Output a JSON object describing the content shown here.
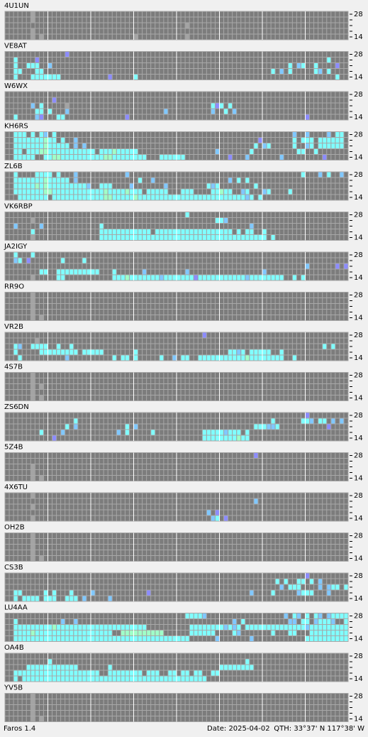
{
  "window": {
    "axis_top": "28",
    "axis_bottom": "14",
    "colors": {
      "g": "#a4a4a4",
      "c": "#80ffff",
      "b": "#80c8ff",
      "p": "#8c8cff",
      "m": "#a0ffc8"
    },
    "panels": [
      {
        "label": "4U1UN",
        "rows": [
          "......g...",
          "......g...",
          "..........................................g",
          "......g...",
          "......g.g.....................g...........g"
        ]
      },
      {
        "label": "VE8AT",
        "rows": [
          "..............p",
          "..c....p...................................................................c....",
          "..c..ccc..b.......................................................c.bc..c....p..",
          "..cc...cc.....................................................c.b.c.....cb.c...",
          "..c...ccccccc...........p.....c..............................................c"
        ]
      },
      {
        "label": "W6WX",
        "rows": [
          "",
          "...........p...................................................................",
          "......b.c.....g.................................cpc.c..........................",
          ".......cc.c...b......................b..........b..c.b........................",
          "..c....bp...cc..............p.........................................p......."
        ]
      },
      {
        "label": "KH6RS",
        "rows": [
          "..ccc.c.cb.c.......................................................b..b....b.cc",
          "..cccccccmcc.c..b..........................................p.......c.ccc.cccccc.",
          "..cccccccmccccc.b.b.......................................c.bc.....c..bc.cccccc..",
          "..cc.cccmmccccccccccc.cccmccccc..................b.......c..........cc..c........",
          "..ccccc..ccmmccccccccccmmcccccccc...cccccc..........p...b.......b.........p......"
        ]
      },
      {
        "label": "ZL6B",
        "rows": [
          "..c....cccc.c...b...........b........................................c...b.c..b.",
          "..cccccccmccccc.b..............c..b.................b.c.c..........................",
          "..cccccmcmcccccccccb..ccc....b.......b.........cbc........c...........................",
          "..cccccccmmccccccccccccmccccmccc.ccccc...ccc....ccmcc..bc...bc....c...............",
          "...ccccccc.ccccccccccccmmcccccmcccccccccccccccccccccccccbc.c..........................."
        ]
      },
      {
        "label": "VK6RBP",
        "rows": [
          "..........................................c...................................",
          "......g..........................................ccb..........................",
          "..b.....b.............c..................................b....................",
          "......c...............cccccccccccc.cccccccccccccccccc.c.cc..c.......................",
          "......g...............ccccccccccccccccccccccccccccccccccccccc.c........................"
        ]
      },
      {
        "label": "JA2IGY",
        "rows": [
          "..c...c........................................................................",
          "..bc.p.......c....c...............................................................",
          "......................................................................b......p.p.",
          "........cc..cccccccccc...c......b.........b.................b.....................",
          "......g.....cc...........cccmcccccccbcccccccpcccccccccccbcccccccc..c.c.........."
        ]
      },
      {
        "label": "RR9O",
        "rows": [
          "......g...",
          "......g...",
          "......g...",
          "......g...",
          "......g.g....."
        ]
      },
      {
        "label": "VR2B",
        "rows": [
          "..............................................p.................................",
          ".......g..........................................................................c.",
          "..cb..cccc..c..c..........................................................c.c.....",
          "..c.....ccccccccc.ccccc.......c.....................ccbc.ccccc..c..................",
          "...c..........b..........c.cc.c.....c..b.cc..cccccccccccmcccccccc..c.........."
        ]
      },
      {
        "label": "4S7B",
        "rows": [
          "......g...",
          "......g...",
          "......g.g.",
          "......g...",
          "......g.g....."
        ]
      },
      {
        "label": "ZS6DN",
        "rows": [
          "......................................................................p...........",
          "................c.............................................c......ccb.cc.b.b.",
          "..............c.b...........c.b...........................cccbbc...........p....",
          "........c....b............b.c.....c...........cccccbccc.c.........................",
          "...........p..................................ccccccccmcc..................."
        ]
      },
      {
        "label": "5Z4B",
        "rows": [
          "..........................................................p..................",
          "..................................................................................p....",
          "......g...",
          "......g...",
          "......g.g....."
        ]
      },
      {
        "label": "4X6TU",
        "rows": [
          "......g...",
          "..........................................................b..................",
          "......g...",
          "...............................................b.p...............",
          "......g.........................................bc.p............"
        ]
      },
      {
        "label": "OH2B",
        "rows": [
          "......g...",
          "......g...",
          "......g...",
          "......g...",
          "......g.g....."
        ]
      },
      {
        "label": "CS3B",
        "rows": [
          "......................................................................p........",
          "...............................................................c.c..cc.c.b........",
          "................................................................b.ccc....b.bcc.c..",
          "..cc.....c.c...c....b............p.......................b....c.....bccc...b...",
          "..c.cccc.ccc..ccc.b.....b.........................................................b"
        ]
      },
      {
        "label": "LU4AA",
        "rows": [
          "..........................................ccccb..................b.cb.c.cb.bccccc",
          "..c..........b..b....................................b.c..........bb.cc.bcccb..c..",
          "..cccccccccmccccccccccccccccccccc..........ccccccccbcbc.ccccccccccccccbccccccccc",
          "..ccccmcccccccccccccccccc..mmmmmmmmmm......cccccc....cb.......c...cc...ccccccccc",
          "..ccccccccccccccccccccccccccccccccccccccccc......b.......b............ccccccccccc"
        ]
      },
      {
        "label": "OA4B",
        "rows": [
          "........................................................................",
          "..........c.............................................c......................",
          ".....cccccccccccc.......c.........................cccccccc......................",
          "..cccccccccccccccccccc..cccccccc.ccc..cc.cc.cc..cc.....................",
          "..c.ccccccccccccccccccccccccccccccccccccccccccc......................"
        ]
      },
      {
        "label": "YV5B",
        "rows": [
          "......g...",
          "......g...",
          "......g...",
          "......g...",
          "......g.g....."
        ]
      }
    ],
    "footer": {
      "app": "Faros 1.4",
      "date": "Date: 2025-04-02",
      "qth": "QTH: 33°37' N  117°38' W"
    }
  }
}
